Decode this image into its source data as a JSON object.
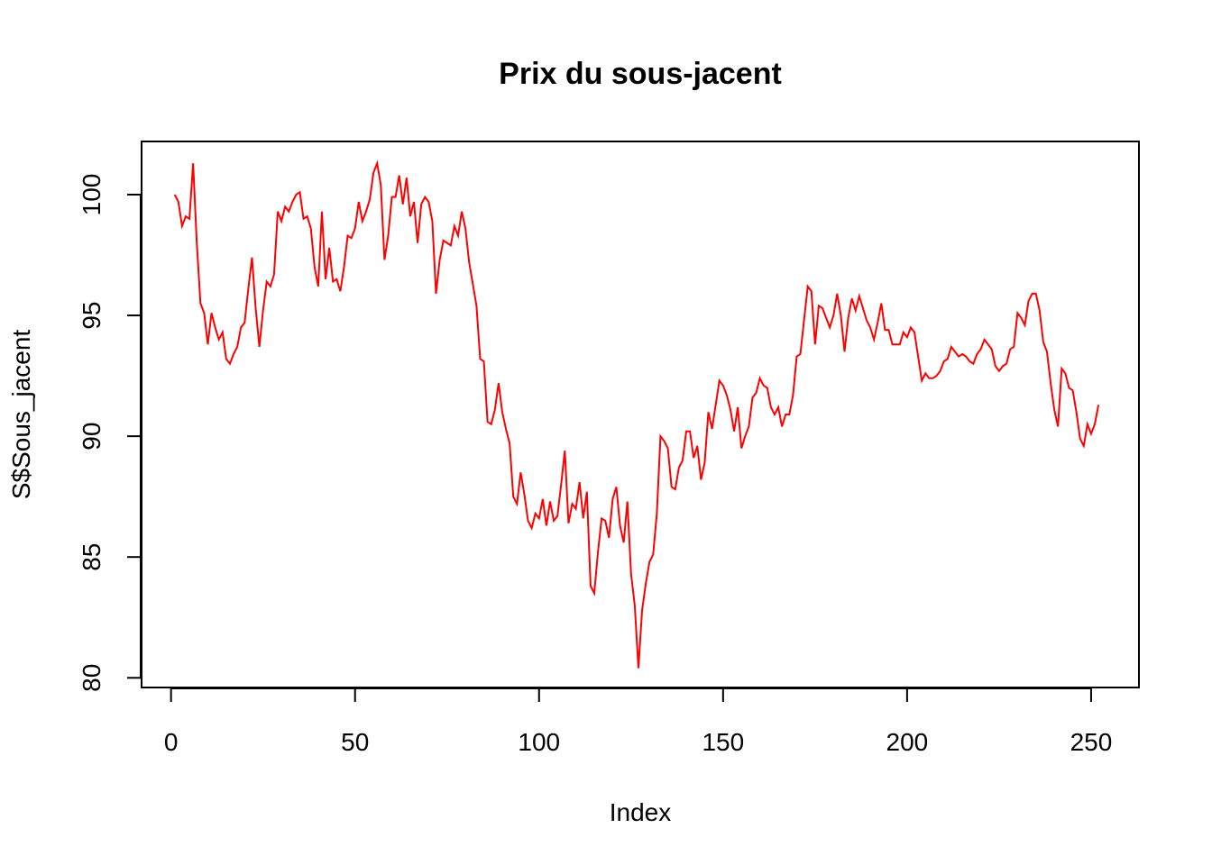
{
  "chart_data": {
    "type": "line",
    "title": "Prix du sous-jacent",
    "xlabel": "Index",
    "ylabel": "S$Sous_jacent",
    "xlim": [
      -8,
      263
    ],
    "ylim": [
      79.6,
      102.2
    ],
    "xticks": [
      "0",
      "50",
      "100",
      "150",
      "200",
      "250"
    ],
    "yticks": [
      "80",
      "85",
      "90",
      "95",
      "100"
    ],
    "grid": false,
    "legend": "none",
    "line_color": "#ff0000",
    "x_start": 1,
    "x_step": 1,
    "y": [
      100.0,
      99.7,
      98.7,
      99.1,
      99.0,
      101.3,
      98.0,
      95.5,
      95.1,
      93.8,
      95.1,
      94.5,
      94.0,
      94.3,
      93.2,
      93.0,
      93.4,
      93.7,
      94.5,
      94.7,
      96.1,
      97.4,
      95.3,
      93.7,
      95.2,
      96.4,
      96.2,
      96.7,
      99.3,
      98.9,
      99.5,
      99.3,
      99.7,
      100.0,
      100.1,
      99.0,
      99.1,
      98.6,
      97.0,
      96.2,
      99.3,
      96.5,
      97.8,
      96.4,
      96.5,
      96.0,
      97.0,
      98.3,
      98.2,
      98.6,
      99.7,
      98.9,
      99.3,
      99.8,
      100.9,
      101.3,
      100.4,
      97.3,
      98.3,
      99.9,
      99.9,
      100.8,
      99.6,
      100.7,
      99.1,
      99.7,
      98.0,
      99.6,
      99.9,
      99.7,
      98.9,
      95.9,
      97.3,
      98.1,
      98.0,
      97.9,
      98.7,
      98.3,
      99.3,
      98.6,
      97.2,
      96.3,
      95.4,
      93.2,
      93.1,
      90.6,
      90.5,
      91.1,
      92.2,
      91.0,
      90.3,
      89.7,
      87.5,
      87.2,
      88.5,
      87.6,
      86.5,
      86.2,
      86.8,
      86.6,
      87.4,
      86.3,
      87.3,
      86.5,
      86.7,
      88.0,
      89.4,
      86.4,
      87.2,
      87.0,
      88.1,
      86.6,
      87.7,
      83.8,
      83.5,
      85.2,
      86.6,
      86.5,
      85.8,
      87.4,
      87.9,
      86.3,
      85.6,
      87.3,
      84.3,
      83.0,
      80.4,
      82.8,
      83.9,
      84.8,
      85.1,
      86.8,
      90.0,
      89.8,
      89.5,
      87.9,
      87.8,
      88.7,
      89.0,
      90.2,
      90.2,
      89.1,
      89.6,
      88.2,
      88.9,
      91.0,
      90.3,
      91.3,
      92.3,
      92.1,
      91.7,
      91.1,
      90.2,
      91.2,
      89.5,
      90.0,
      90.4,
      91.6,
      91.8,
      92.4,
      92.1,
      92.0,
      91.2,
      90.9,
      91.2,
      90.4,
      90.9,
      90.9,
      91.7,
      93.3,
      93.4,
      94.8,
      96.2,
      96.0,
      93.8,
      95.4,
      95.3,
      94.9,
      94.5,
      95.0,
      95.9,
      95.0,
      93.5,
      94.9,
      95.7,
      95.2,
      95.8,
      95.3,
      94.8,
      94.5,
      94.0,
      94.7,
      95.5,
      94.4,
      94.4,
      93.8,
      93.8,
      93.8,
      94.3,
      94.1,
      94.5,
      94.3,
      93.3,
      92.3,
      92.6,
      92.4,
      92.4,
      92.5,
      92.7,
      93.1,
      93.2,
      93.7,
      93.5,
      93.3,
      93.4,
      93.3,
      93.1,
      93.0,
      93.4,
      93.6,
      94.0,
      93.8,
      93.6,
      92.9,
      92.7,
      92.9,
      93.0,
      93.6,
      93.7,
      95.1,
      94.9,
      94.6,
      95.6,
      95.9,
      95.9,
      95.2,
      93.9,
      93.5,
      92.2,
      91.1,
      90.4,
      92.8,
      92.6,
      92.0,
      91.9,
      91.0,
      89.9,
      89.6,
      90.5,
      90.1,
      90.5,
      91.3
    ]
  }
}
